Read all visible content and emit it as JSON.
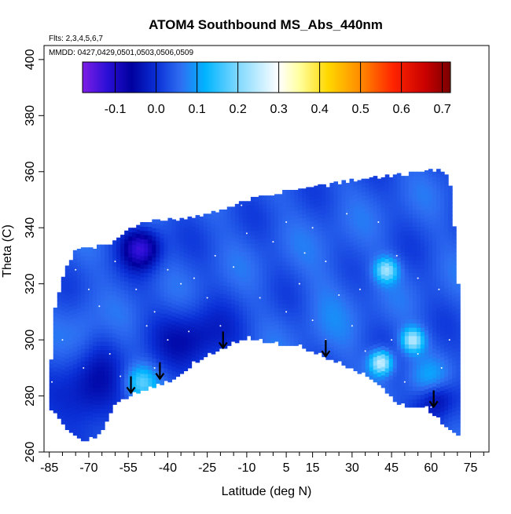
{
  "chart_data": {
    "type": "heatmap",
    "title": "ATOM4 Southbound MS_Abs_440nm",
    "subtitle_lines": [
      "Flts: 2,3,4,5,6,7",
      "MMDD: 0427,0429,0501,0503,0506,0509"
    ],
    "xlabel": "Latitude (deg N)",
    "ylabel": "Theta (C)",
    "xlim": [
      -87,
      82
    ],
    "ylim": [
      260,
      405
    ],
    "x_ticks": [
      -85,
      -70,
      -55,
      -40,
      -25,
      -10,
      5,
      15,
      30,
      45,
      60,
      75
    ],
    "x_minor_ticks": [
      -80,
      -75,
      -65,
      -60,
      -50,
      -45,
      -35,
      -30,
      -20,
      -15,
      -5,
      0,
      10,
      20,
      25,
      35,
      40,
      50,
      55,
      65,
      70,
      80
    ],
    "y_ticks": [
      260,
      280,
      300,
      320,
      340,
      360,
      380,
      400
    ],
    "colorbar": {
      "ticks": [
        -0.1,
        0.0,
        0.1,
        0.2,
        0.3,
        0.4,
        0.5,
        0.6,
        0.7
      ],
      "tick_labels": [
        "-0.1",
        "0.0",
        "0.1",
        "0.2",
        "0.3",
        "0.4",
        "0.5",
        "0.6",
        "0.7"
      ],
      "range": [
        -0.18,
        0.72
      ],
      "stops": [
        {
          "v": -0.18,
          "color": "#7f1ee6"
        },
        {
          "v": -0.12,
          "color": "#2b0fd6"
        },
        {
          "v": -0.06,
          "color": "#00009e"
        },
        {
          "v": 0.0,
          "color": "#0a2fd6"
        },
        {
          "v": 0.06,
          "color": "#2e6ef2"
        },
        {
          "v": 0.12,
          "color": "#00b4ff"
        },
        {
          "v": 0.2,
          "color": "#7fd8ff"
        },
        {
          "v": 0.3,
          "color": "#ffffff"
        },
        {
          "v": 0.35,
          "color": "#ffffa0"
        },
        {
          "v": 0.42,
          "color": "#ffd800"
        },
        {
          "v": 0.5,
          "color": "#ff8a00"
        },
        {
          "v": 0.58,
          "color": "#ff2400"
        },
        {
          "v": 0.66,
          "color": "#c80000"
        },
        {
          "v": 0.72,
          "color": "#7a0000"
        }
      ]
    },
    "data_envelope": {
      "upper": [
        [
          -85,
          283
        ],
        [
          -83,
          310
        ],
        [
          -80,
          322
        ],
        [
          -75,
          333
        ],
        [
          -68,
          333
        ],
        [
          -60,
          335
        ],
        [
          -55,
          340
        ],
        [
          -45,
          343
        ],
        [
          -35,
          343
        ],
        [
          -20,
          346
        ],
        [
          -10,
          350
        ],
        [
          0,
          352
        ],
        [
          10,
          354
        ],
        [
          20,
          355
        ],
        [
          30,
          357
        ],
        [
          40,
          358
        ],
        [
          50,
          359
        ],
        [
          58,
          360
        ],
        [
          63,
          361
        ],
        [
          66,
          359
        ],
        [
          68,
          352
        ],
        [
          70,
          320
        ]
      ],
      "lower": [
        [
          70,
          266
        ],
        [
          65,
          270
        ],
        [
          58,
          276
        ],
        [
          48,
          277
        ],
        [
          40,
          285
        ],
        [
          30,
          290
        ],
        [
          20,
          294
        ],
        [
          10,
          298
        ],
        [
          0,
          299
        ],
        [
          -10,
          301
        ],
        [
          -20,
          297
        ],
        [
          -30,
          292
        ],
        [
          -38,
          286
        ],
        [
          -43,
          284
        ],
        [
          -50,
          282
        ],
        [
          -55,
          280
        ],
        [
          -60,
          278
        ],
        [
          -63,
          272
        ],
        [
          -66,
          266
        ],
        [
          -72,
          264
        ],
        [
          -78,
          268
        ],
        [
          -83,
          275
        ]
      ]
    },
    "field_base_value": 0.04,
    "field_features": [
      {
        "lat": -50,
        "theta": 333,
        "value": -0.12,
        "sigma_lat": 5,
        "sigma_theta": 5
      },
      {
        "lat": -70,
        "theta": 282,
        "value": -0.05,
        "sigma_lat": 8,
        "sigma_theta": 12
      },
      {
        "lat": -30,
        "theta": 300,
        "value": -0.04,
        "sigma_lat": 10,
        "sigma_theta": 8
      },
      {
        "lat": 62,
        "theta": 280,
        "value": -0.08,
        "sigma_lat": 5,
        "sigma_theta": 5
      },
      {
        "lat": 22,
        "theta": 315,
        "value": 0.06,
        "sigma_lat": 8,
        "sigma_theta": 15
      },
      {
        "lat": 43,
        "theta": 325,
        "value": 0.22,
        "sigma_lat": 3,
        "sigma_theta": 3
      },
      {
        "lat": 53,
        "theta": 300,
        "value": 0.24,
        "sigma_lat": 3,
        "sigma_theta": 3
      },
      {
        "lat": 41,
        "theta": 292,
        "value": 0.28,
        "sigma_lat": 3,
        "sigma_theta": 3
      },
      {
        "lat": -50,
        "theta": 285,
        "value": 0.16,
        "sigma_lat": 4,
        "sigma_theta": 4
      },
      {
        "lat": 60,
        "theta": 285,
        "value": 0.12,
        "sigma_lat": 5,
        "sigma_theta": 5
      },
      {
        "lat": -72,
        "theta": 300,
        "value": 0.08,
        "sigma_lat": 5,
        "sigma_theta": 10
      }
    ],
    "sample_points": [
      [
        -75,
        325
      ],
      [
        -70,
        318
      ],
      [
        -66,
        312
      ],
      [
        -60,
        328
      ],
      [
        -52,
        318
      ],
      [
        -45,
        310
      ],
      [
        -40,
        325
      ],
      [
        -30,
        322
      ],
      [
        -22,
        330
      ],
      [
        -15,
        326
      ],
      [
        -10,
        338
      ],
      [
        0,
        335
      ],
      [
        5,
        342
      ],
      [
        12,
        331
      ],
      [
        20,
        328
      ],
      [
        25,
        316
      ],
      [
        33,
        318
      ],
      [
        40,
        342
      ],
      [
        47,
        330
      ],
      [
        55,
        322
      ],
      [
        63,
        318
      ],
      [
        -80,
        300
      ],
      [
        -72,
        290
      ],
      [
        -62,
        295
      ],
      [
        -40,
        300
      ],
      [
        -32,
        303
      ],
      [
        -20,
        305
      ],
      [
        5,
        310
      ],
      [
        15,
        307
      ],
      [
        30,
        305
      ],
      [
        45,
        300
      ],
      [
        55,
        295
      ],
      [
        64,
        290
      ],
      [
        67,
        300
      ],
      [
        -84,
        285
      ],
      [
        -58,
        287
      ],
      [
        -45,
        290
      ],
      [
        20,
        300
      ],
      [
        35,
        296
      ],
      [
        50,
        285
      ],
      [
        60,
        276
      ],
      [
        10,
        320
      ],
      [
        -5,
        315
      ],
      [
        -25,
        315
      ],
      [
        -48,
        305
      ],
      [
        28,
        345
      ],
      [
        15,
        340
      ],
      [
        -12,
        348
      ],
      [
        -35,
        320
      ]
    ],
    "arrows": [
      [
        -54,
        287
      ],
      [
        -43,
        292
      ],
      [
        -19,
        303
      ],
      [
        20,
        300
      ],
      [
        61,
        282
      ]
    ]
  }
}
